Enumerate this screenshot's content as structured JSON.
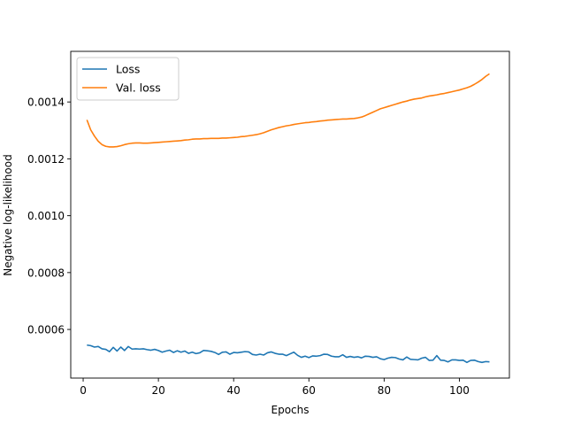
{
  "chart_data": {
    "type": "line",
    "title": "",
    "xlabel": "Epochs",
    "ylabel": "Negative log-likelihood",
    "xlim": [
      -3.3,
      113.3
    ],
    "ylim": [
      0.000429,
      0.001578
    ],
    "xticks": [
      0,
      20,
      40,
      60,
      80,
      100
    ],
    "yticks": [
      0.0006,
      0.0008,
      0.001,
      0.0012,
      0.0014
    ],
    "ytick_labels": [
      "0.0006",
      "0.0008",
      "0.0010",
      "0.0012",
      "0.0014"
    ],
    "grid": false,
    "legend_position": "upper-left",
    "x": [
      1,
      2,
      3,
      4,
      5,
      6,
      7,
      8,
      9,
      10,
      11,
      12,
      13,
      14,
      15,
      16,
      17,
      18,
      19,
      20,
      21,
      22,
      23,
      24,
      25,
      26,
      27,
      28,
      29,
      30,
      31,
      32,
      33,
      34,
      35,
      36,
      37,
      38,
      39,
      40,
      41,
      42,
      43,
      44,
      45,
      46,
      47,
      48,
      49,
      50,
      51,
      52,
      53,
      54,
      55,
      56,
      57,
      58,
      59,
      60,
      61,
      62,
      63,
      64,
      65,
      66,
      67,
      68,
      69,
      70,
      71,
      72,
      73,
      74,
      75,
      76,
      77,
      78,
      79,
      80,
      81,
      82,
      83,
      84,
      85,
      86,
      87,
      88,
      89,
      90,
      91,
      92,
      93,
      94,
      95,
      96,
      97,
      98,
      99,
      100,
      101,
      102,
      103,
      104,
      105,
      106,
      107,
      108
    ],
    "series": [
      {
        "name": "Loss",
        "color": "#1f77b4",
        "values": [
          0.000545,
          0.000543,
          0.000538,
          0.00054,
          0.000532,
          0.00053,
          0.000522,
          0.000537,
          0.000524,
          0.000538,
          0.000526,
          0.00054,
          0.000531,
          0.000532,
          0.000531,
          0.000532,
          0.000529,
          0.000527,
          0.00053,
          0.000526,
          0.00052,
          0.000524,
          0.000527,
          0.000519,
          0.000525,
          0.00052,
          0.000524,
          0.000516,
          0.00052,
          0.000515,
          0.000518,
          0.000526,
          0.000525,
          0.000523,
          0.000519,
          0.000512,
          0.00052,
          0.000521,
          0.000513,
          0.000519,
          0.000518,
          0.00052,
          0.000522,
          0.000521,
          0.000512,
          0.00051,
          0.000513,
          0.00051,
          0.000518,
          0.000521,
          0.000516,
          0.000513,
          0.000513,
          0.000508,
          0.000514,
          0.00052,
          0.000509,
          0.000502,
          0.000506,
          0.000501,
          0.000507,
          0.000506,
          0.000508,
          0.000513,
          0.000512,
          0.000506,
          0.000504,
          0.000504,
          0.000511,
          0.000502,
          0.000505,
          0.000502,
          0.000504,
          0.0005,
          0.000506,
          0.000505,
          0.000502,
          0.000504,
          0.000497,
          0.000494,
          0.000499,
          0.000502,
          0.000501,
          0.000496,
          0.000493,
          0.000503,
          0.000495,
          0.000494,
          0.000493,
          0.000499,
          0.000502,
          0.000491,
          0.000492,
          0.000508,
          0.000492,
          0.000491,
          0.000486,
          0.000493,
          0.000493,
          0.000491,
          0.000492,
          0.000484,
          0.000491,
          0.000492,
          0.000487,
          0.000484,
          0.000487,
          0.000486
        ]
      },
      {
        "name": "Val. loss",
        "color": "#ff7f0e",
        "values": [
          0.001337,
          0.001302,
          0.00128,
          0.001262,
          0.00125,
          0.001244,
          0.001242,
          0.001242,
          0.001243,
          0.001246,
          0.00125,
          0.001253,
          0.001255,
          0.001256,
          0.001256,
          0.001255,
          0.001255,
          0.001256,
          0.001257,
          0.001258,
          0.001259,
          0.00126,
          0.001261,
          0.001262,
          0.001263,
          0.001264,
          0.001266,
          0.001267,
          0.001269,
          0.00127,
          0.00127,
          0.001271,
          0.001271,
          0.001272,
          0.001272,
          0.001272,
          0.001273,
          0.001273,
          0.001274,
          0.001275,
          0.001276,
          0.001278,
          0.001279,
          0.001281,
          0.001283,
          0.001285,
          0.001288,
          0.001292,
          0.001297,
          0.001302,
          0.001306,
          0.00131,
          0.001313,
          0.001316,
          0.001318,
          0.001321,
          0.001323,
          0.001325,
          0.001327,
          0.001328,
          0.00133,
          0.001331,
          0.001333,
          0.001334,
          0.001336,
          0.001337,
          0.001338,
          0.001339,
          0.00134,
          0.00134,
          0.001341,
          0.001342,
          0.001344,
          0.001347,
          0.001352,
          0.001358,
          0.001364,
          0.00137,
          0.001376,
          0.00138,
          0.001384,
          0.001388,
          0.001392,
          0.001396,
          0.0014,
          0.001403,
          0.001407,
          0.00141,
          0.001412,
          0.001414,
          0.001418,
          0.001421,
          0.001423,
          0.001425,
          0.001428,
          0.00143,
          0.001433,
          0.001436,
          0.001439,
          0.001442,
          0.001446,
          0.00145,
          0.001455,
          0.001462,
          0.00147,
          0.001479,
          0.00149,
          0.001499
        ]
      }
    ]
  }
}
